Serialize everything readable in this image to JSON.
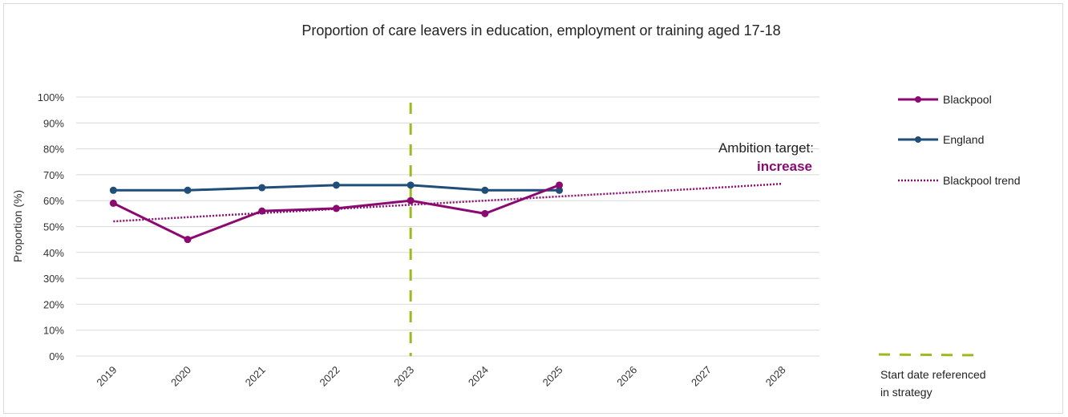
{
  "colors": {
    "blackpool": "#8B0A71",
    "england": "#1F4E79",
    "trend": "#8B0A71",
    "start_line": "#9BBB1E",
    "grid": "#d9d9d9"
  },
  "chart_data": {
    "type": "line",
    "title": "Proportion of care leavers in education, employment or training aged 17-18",
    "xlabel": "",
    "ylabel": "Proportion (%)",
    "categories": [
      "2019",
      "2020",
      "2021",
      "2022",
      "2023",
      "2024",
      "2025",
      "2026",
      "2027",
      "2028"
    ],
    "ylim": [
      0,
      100
    ],
    "yticks": [
      "0%",
      "10%",
      "20%",
      "30%",
      "40%",
      "50%",
      "60%",
      "70%",
      "80%",
      "90%",
      "100%"
    ],
    "grid": true,
    "legend_position": "right",
    "series": [
      {
        "name": "Blackpool",
        "values": [
          59,
          45,
          56,
          57,
          60,
          55,
          66,
          null,
          null,
          null
        ]
      },
      {
        "name": "England",
        "values": [
          64,
          64,
          65,
          66,
          66,
          64,
          64,
          null,
          null,
          null
        ]
      },
      {
        "name": "Blackpool trend",
        "values": [
          52,
          53.6,
          55.2,
          56.8,
          58.4,
          60,
          61.6,
          63.2,
          64.8,
          66.5
        ]
      }
    ],
    "reference_line": {
      "category": "2023",
      "label": "Start date referenced in strategy"
    },
    "annotation": {
      "line1": "Ambition target:",
      "line2": "increase"
    },
    "legend_note_line1": "Start date referenced",
    "legend_note_line2": "in strategy"
  }
}
